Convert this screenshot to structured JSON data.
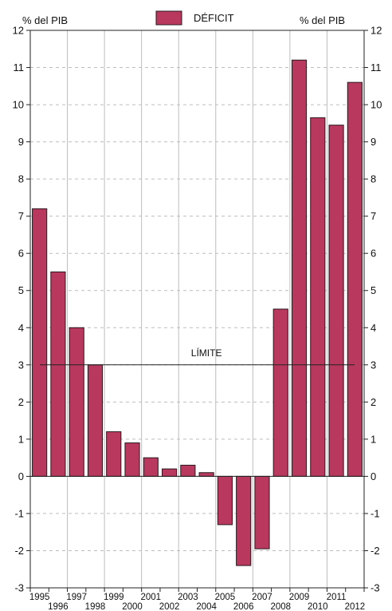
{
  "chart_data": {
    "type": "bar",
    "legend": {
      "label": "DÉFICIT",
      "position": "top-center"
    },
    "ylabel_left": "% del PIB",
    "ylabel_right": "% del PIB",
    "ylim": [
      -3,
      12
    ],
    "yticks": [
      "-3",
      "-2",
      "-1",
      "0",
      "1",
      "2",
      "3",
      "4",
      "5",
      "6",
      "7",
      "8",
      "9",
      "10",
      "11",
      "12"
    ],
    "categories": [
      "1995",
      "1996",
      "1997",
      "1998",
      "1999",
      "2000",
      "2001",
      "2002",
      "2003",
      "2004",
      "2005",
      "2006",
      "2007",
      "2008",
      "2009",
      "2010",
      "2011",
      "2012"
    ],
    "values": [
      7.2,
      5.5,
      4.0,
      3.0,
      1.2,
      0.9,
      0.5,
      0.2,
      0.3,
      0.1,
      -1.3,
      -2.4,
      -1.95,
      4.5,
      11.2,
      9.65,
      9.45,
      10.6
    ],
    "reference_line": {
      "label": "LÍMITE",
      "value": 3
    },
    "grid": true,
    "colors": {
      "bar": "#b8385e",
      "bar_stroke": "#2a1a20",
      "grid": "#bdbdbd",
      "axis": "#222222",
      "line": "#222222"
    }
  }
}
